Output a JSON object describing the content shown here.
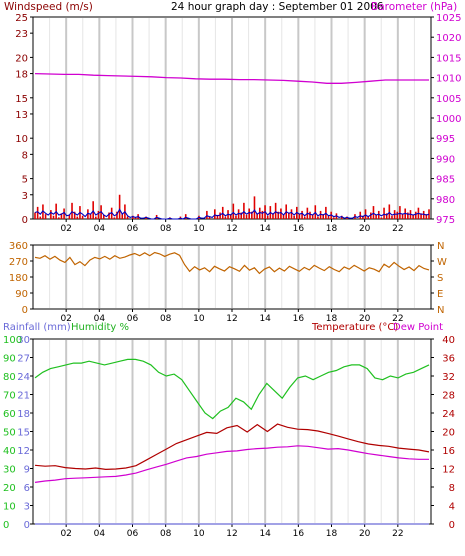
{
  "header": {
    "left_label": "Windspeed (m/s)",
    "title": "24 hour graph day : September 01 2006",
    "right_label": "Barometer (hPa)"
  },
  "colors": {
    "wind_axis": "#8b0000",
    "wind_bars": "#e00000",
    "wind_line": "#0000c0",
    "barometer": "#d000d0",
    "direction": "#c06400",
    "rain": "#6a6ad8",
    "humidity": "#20c020",
    "temperature": "#b00000",
    "dewpoint": "#d000d0",
    "grid_major": "#c8c8c8"
  },
  "chart_data": [
    {
      "type": "bar",
      "title": "Windspeed (m/s)",
      "xlabel": "",
      "ylabel": "Windspeed (m/s)",
      "x_ticks": [
        "02",
        "04",
        "06",
        "08",
        "10",
        "12",
        "14",
        "16",
        "18",
        "20",
        "22"
      ],
      "ylim": [
        0,
        25
      ],
      "y_ticks": [
        0,
        3,
        5,
        8,
        10,
        13,
        15,
        18,
        20,
        23,
        25
      ],
      "y2_label": "Barometer (hPa)",
      "y2_lim": [
        975,
        1025
      ],
      "y2_ticks": [
        975,
        980,
        985,
        990,
        995,
        1000,
        1005,
        1010,
        1015,
        1020,
        1025
      ],
      "series": [
        {
          "name": "Windspeed",
          "style": "bars",
          "values": [
            0.8,
            1.5,
            0.3,
            1.8,
            0.6,
            0,
            1.1,
            0.4,
            1.9,
            0.2,
            0.7,
            1.3,
            0,
            0.5,
            2.0,
            0.9,
            0.3,
            1.6,
            0.4,
            0,
            1.2,
            0.6,
            2.2,
            0.3,
            1.0,
            1.7,
            0.5,
            0,
            0.8,
            1.4,
            0.2,
            0.9,
            3.0,
            0.6,
            1.8,
            0.3,
            0,
            0.4,
            0.2,
            0.6,
            0,
            0,
            0.3,
            0,
            0,
            0,
            0.5,
            0,
            0,
            0,
            0,
            0.2,
            0,
            0,
            0,
            0.3,
            0,
            0.6,
            0,
            0,
            0,
            0,
            0.4,
            0,
            0,
            1.0,
            0.3,
            0,
            1.2,
            0.5,
            0.8,
            1.5,
            0.3,
            1.1,
            0.6,
            1.9,
            0.4,
            1.2,
            0.8,
            2.0,
            0.5,
            1.3,
            0.9,
            2.8,
            0.6,
            1.4,
            1.0,
            1.7,
            0.4,
            1.6,
            0.7,
            2.0,
            0.9,
            1.3,
            0.5,
            1.8,
            0.8,
            1.2,
            0.4,
            1.5,
            0.6,
            1.0,
            0.3,
            1.4,
            0.9,
            0.5,
            1.7,
            0.3,
            1.0,
            0.6,
            1.5,
            0.4,
            0.9,
            0.2,
            0.7,
            0,
            0.4,
            0,
            0.3,
            0,
            0,
            0.6,
            0,
            0.9,
            0.4,
            1.2,
            0.3,
            0.8,
            1.6,
            0.5,
            1.0,
            0.2,
            1.4,
            0.7,
            1.8,
            0.4,
            1.1,
            0.9,
            1.6,
            0.6,
            1.3,
            0.8,
            1.1,
            0.5,
            0.9,
            1.4,
            0.7,
            1.0,
            0.6,
            1.2
          ]
        },
        {
          "name": "Average windspeed",
          "style": "line",
          "values": [
            0.8,
            0.9,
            0.6,
            1.0,
            0.7,
            0.5,
            0.8,
            0.6,
            0.9,
            0.5,
            0.6,
            0.8,
            0.4,
            0.5,
            0.9,
            0.7,
            0.5,
            0.8,
            0.6,
            0.3,
            0.7,
            0.6,
            1.0,
            0.5,
            0.7,
            0.9,
            0.5,
            0.3,
            0.6,
            0.8,
            0.4,
            0.6,
            1.2,
            0.6,
            0.9,
            0.4,
            0.2,
            0.3,
            0.2,
            0.3,
            0.1,
            0.1,
            0.2,
            0.1,
            0,
            0,
            0.2,
            0.1,
            0,
            0,
            0,
            0.1,
            0,
            0,
            0,
            0.1,
            0,
            0.2,
            0.1,
            0,
            0,
            0,
            0.2,
            0.1,
            0.1,
            0.4,
            0.3,
            0.2,
            0.5,
            0.4,
            0.5,
            0.7,
            0.4,
            0.6,
            0.5,
            0.8,
            0.5,
            0.7,
            0.6,
            0.9,
            0.6,
            0.8,
            0.7,
            1.1,
            0.6,
            0.8,
            0.7,
            0.9,
            0.5,
            0.8,
            0.6,
            0.9,
            0.7,
            0.8,
            0.5,
            0.9,
            0.7,
            0.8,
            0.5,
            0.8,
            0.6,
            0.7,
            0.4,
            0.7,
            0.6,
            0.5,
            0.8,
            0.4,
            0.6,
            0.5,
            0.7,
            0.4,
            0.5,
            0.3,
            0.4,
            0.2,
            0.3,
            0.1,
            0.2,
            0.1,
            0.1,
            0.3,
            0.2,
            0.4,
            0.3,
            0.5,
            0.3,
            0.5,
            0.7,
            0.5,
            0.6,
            0.4,
            0.6,
            0.5,
            0.8,
            0.5,
            0.6,
            0.6,
            0.7,
            0.6,
            0.7,
            0.6,
            0.6,
            0.5,
            0.6,
            0.7,
            0.6,
            0.6,
            0.5,
            0.6
          ]
        },
        {
          "name": "Barometer",
          "style": "line",
          "axis": "right",
          "values": [
            1011.0,
            1010.9,
            1010.8,
            1010.8,
            1010.6,
            1010.5,
            1010.4,
            1010.3,
            1010.2,
            1010.0,
            1009.9,
            1009.7,
            1009.6,
            1009.6,
            1009.5,
            1009.5,
            1009.4,
            1009.3,
            1009.1,
            1008.9,
            1008.6,
            1008.6,
            1008.8,
            1009.1,
            1009.4,
            1009.4,
            1009.4,
            1009.4
          ]
        }
      ]
    },
    {
      "type": "line",
      "title": "",
      "xlabel": "",
      "ylabel": "",
      "ylim": [
        0,
        360
      ],
      "y_ticks": [
        0,
        90,
        180,
        270,
        360
      ],
      "y2_ticks": [
        "N",
        "E",
        "S",
        "W",
        "N"
      ],
      "series": [
        {
          "name": "Wind direction",
          "values": [
            290,
            285,
            300,
            280,
            296,
            275,
            262,
            290,
            250,
            266,
            244,
            275,
            290,
            282,
            296,
            280,
            300,
            285,
            292,
            304,
            312,
            300,
            316,
            300,
            318,
            310,
            296,
            308,
            316,
            302,
            250,
            212,
            238,
            220,
            232,
            210,
            240,
            226,
            214,
            238,
            226,
            212,
            245,
            218,
            232,
            200,
            224,
            236,
            210,
            230,
            214,
            240,
            226,
            212,
            234,
            220,
            246,
            230,
            216,
            238,
            222,
            210,
            236,
            224,
            246,
            230,
            214,
            232,
            224,
            210,
            252,
            234,
            262,
            240,
            222,
            236,
            216,
            244,
            228,
            220
          ]
        }
      ]
    },
    {
      "type": "line",
      "title": "",
      "xlabel": "",
      "ylabel": "Rainfall (mm)",
      "ylim": [
        0,
        30
      ],
      "y_ticks": [
        0,
        3,
        6,
        9,
        12,
        15,
        18,
        21,
        24,
        27,
        30
      ],
      "humidity_label": "Humidity %",
      "humidity_lim": [
        0,
        100
      ],
      "humidity_ticks": [
        0,
        10,
        20,
        30,
        40,
        50,
        60,
        70,
        80,
        90,
        100
      ],
      "y2_label": "Temperature (°C)",
      "y2_label_2": "Dew Point",
      "y2_lim": [
        0,
        40
      ],
      "y2_ticks": [
        0,
        4,
        8,
        12,
        16,
        20,
        24,
        28,
        32,
        36,
        40
      ],
      "series": [
        {
          "name": "Rainfall",
          "values": [
            0,
            0,
            0,
            0,
            0,
            0,
            0,
            0,
            0,
            0,
            0,
            0,
            0,
            0,
            0,
            0,
            0,
            0,
            0,
            0,
            0,
            0,
            0,
            0,
            0
          ]
        },
        {
          "name": "Humidity",
          "axis": "humidity",
          "values": [
            79,
            82,
            84,
            85,
            86,
            87,
            87,
            88,
            87,
            86,
            87,
            88,
            89,
            89,
            88,
            86,
            82,
            80,
            81,
            78,
            72,
            66,
            60,
            57,
            61,
            63,
            68,
            66,
            62,
            70,
            76,
            72,
            68,
            74,
            79,
            80,
            78,
            80,
            82,
            83,
            85,
            86,
            86,
            84,
            79,
            78,
            80,
            79,
            81,
            82,
            84,
            86
          ]
        },
        {
          "name": "Temperature",
          "axis": "right",
          "values": [
            12.7,
            12.5,
            12.6,
            12.2,
            12.0,
            11.9,
            12.1,
            11.8,
            11.9,
            12.1,
            12.6,
            13.8,
            15.0,
            16.2,
            17.4,
            18.2,
            19.0,
            19.8,
            19.6,
            20.8,
            21.3,
            19.9,
            21.5,
            20.0,
            21.6,
            20.9,
            20.5,
            20.4,
            20.1,
            19.6,
            19.0,
            18.4,
            17.8,
            17.3,
            17.0,
            16.8,
            16.4,
            16.2,
            16.0,
            15.6
          ]
        },
        {
          "name": "Dew Point",
          "axis": "right",
          "values": [
            9.0,
            9.3,
            9.5,
            9.8,
            9.9,
            10.0,
            10.1,
            10.2,
            10.3,
            10.6,
            11.0,
            11.7,
            12.3,
            12.9,
            13.6,
            14.3,
            14.6,
            15.1,
            15.4,
            15.7,
            15.8,
            16.1,
            16.3,
            16.4,
            16.6,
            16.7,
            16.9,
            16.8,
            16.5,
            16.2,
            16.3,
            16.0,
            15.6,
            15.2,
            14.9,
            14.6,
            14.3,
            14.1,
            14.0,
            14.0
          ]
        }
      ]
    }
  ]
}
